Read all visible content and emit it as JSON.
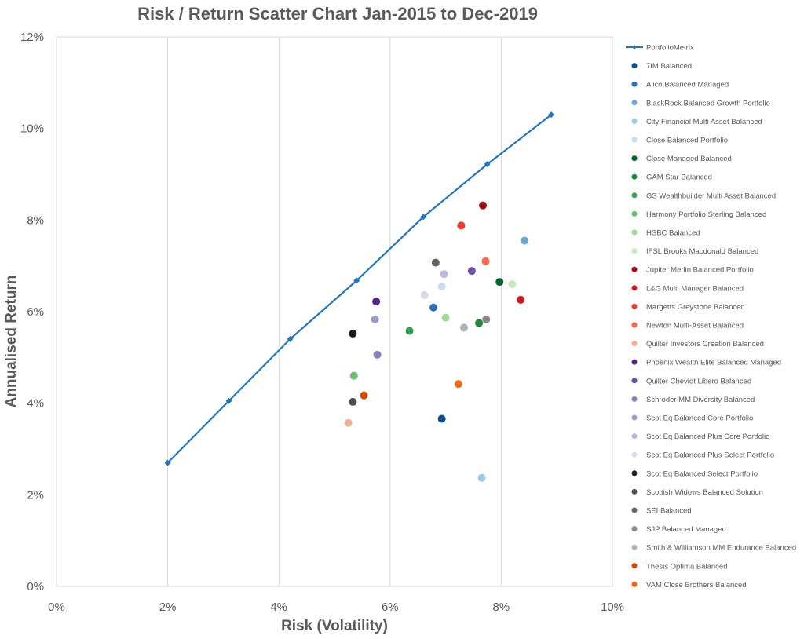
{
  "chart_data": {
    "type": "scatter",
    "title": "Risk / Return Scatter Chart Jan-2015 to Dec-2019",
    "xlabel": "Risk (Volatility)",
    "ylabel": "Annualised Return",
    "xlim": [
      0,
      10
    ],
    "ylim": [
      0,
      12
    ],
    "x_ticks": [
      "0%",
      "2%",
      "4%",
      "6%",
      "8%",
      "10%"
    ],
    "y_ticks": [
      "0%",
      "2%",
      "4%",
      "6%",
      "8%",
      "10%",
      "12%"
    ],
    "grid": "vertical",
    "legend_position": "right",
    "line_series": {
      "name": "PortfolioMetrix",
      "color": "#1f77c4",
      "x": [
        2.0,
        3.1,
        4.2,
        5.4,
        6.6,
        7.75,
        8.9
      ],
      "y": [
        2.7,
        4.05,
        5.4,
        6.68,
        8.07,
        9.22,
        10.3
      ]
    },
    "series": [
      {
        "name": "7IM Balanced",
        "color": "#0b4f8c",
        "x": 6.93,
        "y": 3.66
      },
      {
        "name": "Alico Balanced Managed",
        "color": "#2a73bd",
        "x": 6.78,
        "y": 6.09
      },
      {
        "name": "BlackRock Balanced Growth Portfolio",
        "color": "#6ea6d4",
        "x": 8.42,
        "y": 7.55
      },
      {
        "name": "City Financial Multi Asset Balanced",
        "color": "#9ccae6",
        "x": 7.65,
        "y": 2.37
      },
      {
        "name": "Close Balanced Portfolio",
        "color": "#c6dbef",
        "x": 6.93,
        "y": 6.55
      },
      {
        "name": "Close Managed Balanced",
        "color": "#00652b",
        "x": 7.97,
        "y": 6.65
      },
      {
        "name": "GAM Star Balanced",
        "color": "#1f8a3a",
        "x": 7.6,
        "y": 5.75
      },
      {
        "name": "GS Wealthbuilder Multi Asset Balanced",
        "color": "#33a350",
        "x": 6.35,
        "y": 5.58
      },
      {
        "name": "Harmony Portfolio Sterling Balanced",
        "color": "#6bbf6e",
        "x": 5.35,
        "y": 4.6
      },
      {
        "name": "HSBC Balanced",
        "color": "#a1d99b",
        "x": 7.0,
        "y": 5.87
      },
      {
        "name": "IFSL Brooks Macdonald Balanced",
        "color": "#c7e9c0",
        "x": 8.2,
        "y": 6.6
      },
      {
        "name": "Jupiter Merlin Balanced Portfolio",
        "color": "#9e0c16",
        "x": 7.67,
        "y": 8.32
      },
      {
        "name": "L&G Multi Manager Balanced",
        "color": "#d4151f",
        "x": 8.35,
        "y": 6.26
      },
      {
        "name": "Margetts Greystone Balanced",
        "color": "#ef3b2c",
        "x": 7.28,
        "y": 7.88
      },
      {
        "name": "Newton Multi-Asset Balanced",
        "color": "#fb6a4a",
        "x": 7.72,
        "y": 7.1
      },
      {
        "name": "Quilter Investors Creation Balanced",
        "color": "#f4b096",
        "x": 5.25,
        "y": 3.57
      },
      {
        "name": "Phoenix Wealth Elite Balanced Managed",
        "color": "#54278f",
        "x": 5.75,
        "y": 6.22
      },
      {
        "name": "Quilter Cheviot Libero Balanced",
        "color": "#6a51a3",
        "x": 7.47,
        "y": 6.89
      },
      {
        "name": "Schroder MM Diversity Balanced",
        "color": "#8b7fc0",
        "x": 5.77,
        "y": 5.06
      },
      {
        "name": "Scot Eq Balanced Core Portfolio",
        "color": "#a59acb",
        "x": 5.73,
        "y": 5.83
      },
      {
        "name": "Scot Eq Balanced Plus Core Portfolio",
        "color": "#bcb7dc",
        "x": 6.97,
        "y": 6.82
      },
      {
        "name": "Scot Eq Balanced Plus Select Portfolio",
        "color": "#dadaeb",
        "x": 6.62,
        "y": 6.36
      },
      {
        "name": "Scot Eq Balanced Select Portfolio",
        "color": "#1a1a1a",
        "x": 5.33,
        "y": 5.52
      },
      {
        "name": "Scottish Widows Balanced Solution",
        "color": "#4d4d4d",
        "x": 5.33,
        "y": 4.03
      },
      {
        "name": "SEI Balanced",
        "color": "#666666",
        "x": 6.82,
        "y": 7.07
      },
      {
        "name": "SJP Balanced Managed",
        "color": "#8a8a8a",
        "x": 7.73,
        "y": 5.83
      },
      {
        "name": "Smith & Williamson MM Endurance Balanced",
        "color": "#b3b3b3",
        "x": 7.33,
        "y": 5.65
      },
      {
        "name": "Thesis Optima Balanced",
        "color": "#d94801",
        "x": 5.53,
        "y": 4.17
      },
      {
        "name": "VAM Close Brothers Balanced",
        "color": "#f16913",
        "x": 7.23,
        "y": 4.42
      }
    ]
  }
}
